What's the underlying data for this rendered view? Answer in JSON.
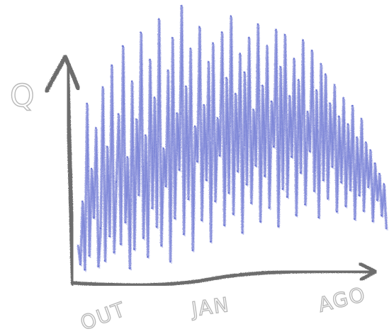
{
  "chart_data": {
    "type": "line",
    "title": "",
    "ylabel": "Q",
    "xlabel": "",
    "x_tick_labels": [
      "OUT",
      "JAN",
      "AGO"
    ],
    "ylim": [
      0,
      100
    ],
    "grid": false,
    "colors": {
      "series": "#4b57c9",
      "axis": "#6d6d6d",
      "label": "#b9b9b9"
    },
    "series": [
      {
        "values": [
          12,
          5,
          28,
          3,
          64,
          8,
          40,
          22,
          55,
          4,
          18,
          70,
          6,
          48,
          15,
          78,
          9,
          35,
          60,
          12,
          85,
          20,
          44,
          3,
          72,
          10,
          58,
          30,
          90,
          14,
          52,
          7,
          80,
          25,
          66,
          18,
          95,
          11,
          47,
          33,
          76,
          5,
          88,
          21,
          60,
          39,
          100,
          15,
          70,
          28,
          84,
          9,
          55,
          42,
          92,
          20,
          63,
          35,
          79,
          12,
          86,
          27,
          58,
          44,
          90,
          18,
          73,
          30,
          96,
          22,
          67,
          38,
          82,
          15,
          75,
          33,
          88,
          26,
          61,
          40,
          93,
          19,
          70,
          36,
          85,
          24,
          64,
          47,
          91,
          17,
          77,
          31,
          89,
          28,
          66,
          43,
          80,
          21,
          72,
          37,
          87,
          25,
          60,
          45,
          83,
          30,
          68,
          20,
          78,
          34,
          74,
          27,
          63,
          39,
          70,
          22,
          58,
          33,
          65,
          24,
          55,
          30,
          62,
          19,
          50,
          28,
          57,
          22,
          48,
          31,
          45,
          18,
          40,
          26,
          36,
          20,
          32,
          15
        ]
      }
    ]
  }
}
